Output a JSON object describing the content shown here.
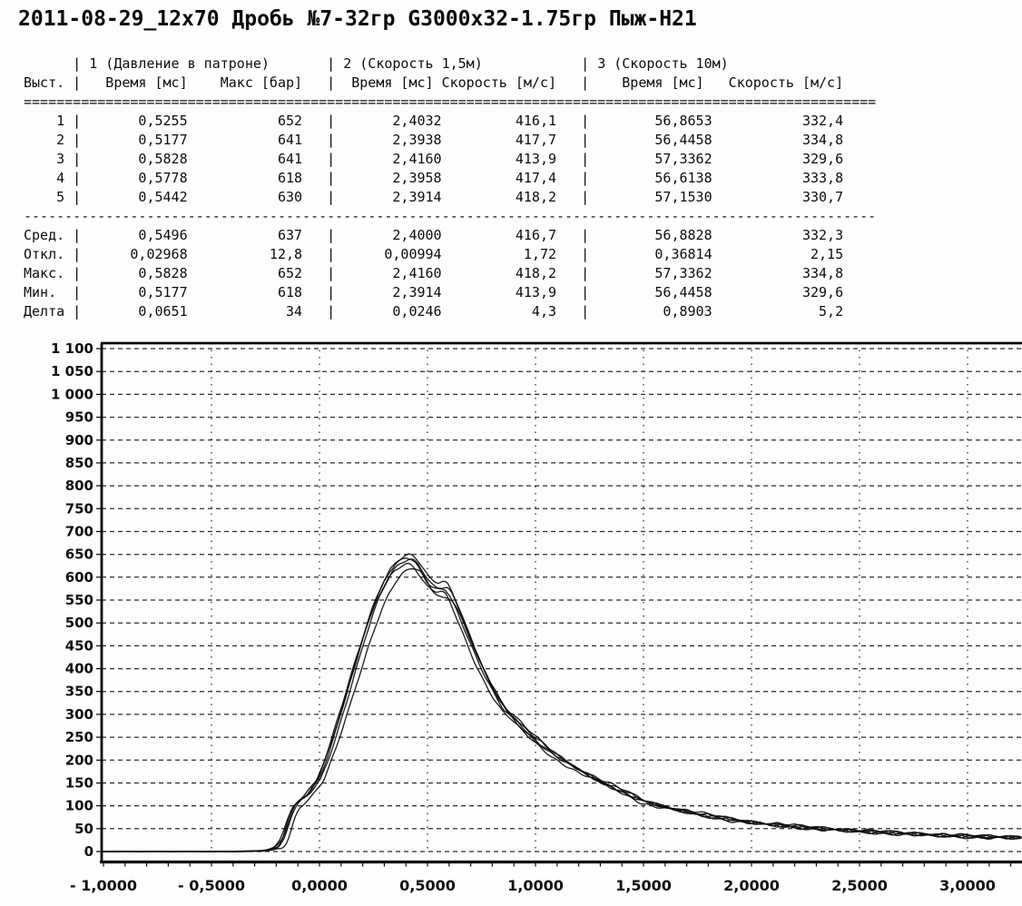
{
  "title": "2011-08-29_12x70 Дробь №7-32гр G3000x32-1.75гр Пыж-Н21",
  "table": {
    "shot_col_header": "Выст.",
    "group_headers": [
      "1 (Давление в патроне)",
      "2 (Скорость 1,5м)",
      "3 (Скорость 10м)"
    ],
    "col_headers": [
      "Время [мс]",
      "Макс [бар]",
      "Время [мс]",
      "Скорость [м/с]",
      "Время [мс]",
      "Скорость [м/с]"
    ],
    "rows": [
      [
        "1",
        "0,5255",
        "652",
        "2,4032",
        "416,1",
        "56,8653",
        "332,4"
      ],
      [
        "2",
        "0,5177",
        "641",
        "2,3938",
        "417,7",
        "56,4458",
        "334,8"
      ],
      [
        "3",
        "0,5828",
        "641",
        "2,4160",
        "413,9",
        "57,3362",
        "329,6"
      ],
      [
        "4",
        "0,5778",
        "618",
        "2,3958",
        "417,4",
        "56,6138",
        "333,8"
      ],
      [
        "5",
        "0,5442",
        "630",
        "2,3914",
        "418,2",
        "57,1530",
        "330,7"
      ]
    ],
    "stat_rows": [
      [
        "Сред.",
        "0,5496",
        "637",
        "2,4000",
        "416,7",
        "56,8828",
        "332,3"
      ],
      [
        "Откл.",
        "0,02968",
        "12,8",
        "0,00994",
        "1,72",
        "0,36814",
        "2,15"
      ],
      [
        "Макс.",
        "0,5828",
        "652",
        "2,4160",
        "418,2",
        "57,3362",
        "334,8"
      ],
      [
        "Мин.",
        "0,5177",
        "618",
        "2,3914",
        "413,9",
        "56,4458",
        "329,6"
      ],
      [
        "Делта",
        "0,0651",
        "34",
        "0,0246",
        "4,3",
        "0,8903",
        "5,2"
      ]
    ]
  },
  "chart_data": {
    "type": "line",
    "title": "",
    "xlabel": "",
    "ylabel": "",
    "units": {
      "x": "мс",
      "y": "бар"
    },
    "xlim": [
      -1.01,
      3.25
    ],
    "ylim": [
      0,
      1100
    ],
    "grid": "dashed",
    "legend_position": "none",
    "x_tick_values": [
      -1.0,
      -0.5,
      0.0,
      0.5,
      1.0,
      1.5,
      2.0,
      2.5,
      3.0
    ],
    "x_tick_labels": [
      "- 1,0000",
      "- 0,5000",
      "0,0000",
      "0,5000",
      "1,0000",
      "1,5000",
      "2,0000",
      "2,5000",
      "3,0000"
    ],
    "y_tick_step": 50,
    "y_tick_labels": [
      "0",
      "50",
      "100",
      "150",
      "200",
      "250",
      "300",
      "350",
      "400",
      "450",
      "500",
      "550",
      "600",
      "650",
      "700",
      "750",
      "800",
      "850",
      "900",
      "950",
      "1 000",
      "1 050",
      "1 100"
    ],
    "series": [
      {
        "name": "Выстрел 1",
        "peak_bar": 652
      },
      {
        "name": "Выстрел 2",
        "peak_bar": 641
      },
      {
        "name": "Выстрел 3",
        "peak_bar": 641
      },
      {
        "name": "Выстрел 4",
        "peak_bar": 618
      },
      {
        "name": "Выстрел 5",
        "peak_bar": 630
      }
    ],
    "base_curve": {
      "x": [
        -1.01,
        -0.6,
        -0.4,
        -0.3,
        -0.26,
        -0.22,
        -0.19,
        -0.17,
        -0.155,
        -0.14,
        -0.125,
        -0.11,
        -0.095,
        -0.08,
        -0.06,
        -0.04,
        -0.02,
        0.0,
        0.03,
        0.06,
        0.09,
        0.12,
        0.15,
        0.18,
        0.21,
        0.24,
        0.27,
        0.3,
        0.33,
        0.36,
        0.39,
        0.41,
        0.43,
        0.45,
        0.47,
        0.49,
        0.51,
        0.53,
        0.55,
        0.57,
        0.59,
        0.61,
        0.64,
        0.67,
        0.7,
        0.74,
        0.78,
        0.82,
        0.86,
        0.9,
        0.95,
        1.0,
        1.05,
        1.1,
        1.2,
        1.3,
        1.4,
        1.5,
        1.6,
        1.7,
        1.8,
        1.9,
        2.0,
        2.15,
        2.3,
        2.45,
        2.6,
        2.8,
        3.0,
        3.25
      ],
      "y": [
        0,
        0,
        0,
        1,
        2,
        5,
        12,
        25,
        45,
        70,
        90,
        103,
        110,
        116,
        124,
        136,
        150,
        162,
        200,
        242,
        288,
        335,
        385,
        432,
        480,
        524,
        562,
        594,
        620,
        638,
        648,
        652,
        650,
        642,
        628,
        612,
        598,
        590,
        586,
        588,
        585,
        570,
        538,
        502,
        466,
        420,
        380,
        345,
        315,
        298,
        272,
        250,
        230,
        212,
        182,
        157,
        135,
        112,
        99,
        89,
        80,
        72,
        65,
        58,
        52,
        47,
        43,
        38,
        34,
        31
      ]
    }
  }
}
